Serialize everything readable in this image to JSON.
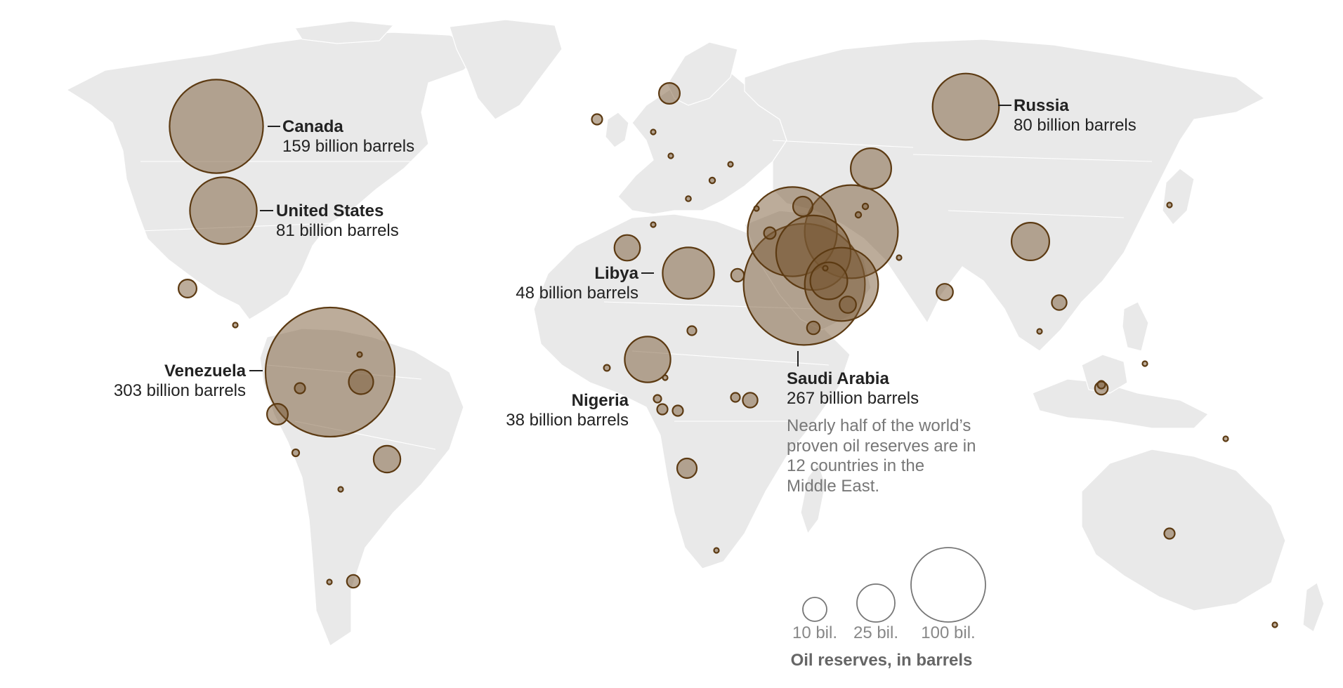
{
  "colors": {
    "land": "#e9e9e9",
    "bubble_fill": "#7a5a35",
    "bubble_stroke": "#5c3a12",
    "label_text": "#222222",
    "note_text": "#777777",
    "legend_stroke": "#777777"
  },
  "labels": {
    "canada": {
      "name": "Canada",
      "value": "159 billion barrels"
    },
    "united_states": {
      "name": "United States",
      "value": "81 billion barrels"
    },
    "venezuela": {
      "name": "Venezuela",
      "value": "303 billion barrels"
    },
    "libya": {
      "name": "Libya",
      "value": "48 billion barrels"
    },
    "nigeria": {
      "name": "Nigeria",
      "value": "38 billion barrels"
    },
    "russia": {
      "name": "Russia",
      "value": "80 billion barrels"
    },
    "saudi_arabia": {
      "name": "Saudi Arabia",
      "value": "267 billion barrels"
    }
  },
  "note": {
    "lines": [
      "Nearly half of the world’s",
      "proven oil reserves are in",
      "12 countries in the",
      "Middle East."
    ]
  },
  "legend": {
    "title": "Oil reserves, in barrels",
    "items": [
      {
        "label": "10 bil.",
        "reserves_billion": 10
      },
      {
        "label": "25 bil.",
        "reserves_billion": 25
      },
      {
        "label": "100 bil.",
        "reserves_billion": 100
      }
    ]
  },
  "reserves": [
    {
      "country": "Venezuela",
      "billion_barrels": 303
    },
    {
      "country": "Saudi Arabia",
      "billion_barrels": 267
    },
    {
      "country": "Canada",
      "billion_barrels": 159
    },
    {
      "country": "Iran",
      "billion_barrels": 158
    },
    {
      "country": "Iraq",
      "billion_barrels": 145
    },
    {
      "country": "Kuwait",
      "billion_barrels": 101
    },
    {
      "country": "United Arab Emirates",
      "billion_barrels": 98
    },
    {
      "country": "United States",
      "billion_barrels": 81
    },
    {
      "country": "Russia",
      "billion_barrels": 80
    },
    {
      "country": "Libya",
      "billion_barrels": 48
    },
    {
      "country": "Nigeria",
      "billion_barrels": 38
    },
    {
      "country": "Kazakhstan",
      "billion_barrels": 30
    },
    {
      "country": "China",
      "billion_barrels": 26
    },
    {
      "country": "Qatar",
      "billion_barrels": 25
    },
    {
      "country": "Brazil",
      "billion_barrels": 13
    },
    {
      "country": "Algeria",
      "billion_barrels": 12
    },
    {
      "country": "Guyana",
      "billion_barrels": 11
    },
    {
      "country": "Norway",
      "billion_barrels": 8
    },
    {
      "country": "Angola",
      "billion_barrels": 7
    },
    {
      "country": "Mexico",
      "billion_barrels": 6
    },
    {
      "country": "Ecuador",
      "billion_barrels": 8
    },
    {
      "country": "Azerbaijan",
      "billion_barrels": 7
    },
    {
      "country": "Oman",
      "billion_barrels": 5
    },
    {
      "country": "India",
      "billion_barrels": 5
    },
    {
      "country": "Vietnam",
      "billion_barrels": 4
    },
    {
      "country": "Egypt",
      "billion_barrels": 3
    },
    {
      "country": "South Sudan",
      "billion_barrels": 4
    },
    {
      "country": "Yemen",
      "billion_barrels": 3
    },
    {
      "country": "Malaysia",
      "billion_barrels": 3
    },
    {
      "country": "Indonesia",
      "billion_barrels": 2
    },
    {
      "country": "Argentina",
      "billion_barrels": 3
    },
    {
      "country": "Colombia",
      "billion_barrels": 2
    },
    {
      "country": "Australia",
      "billion_barrels": 2
    },
    {
      "country": "Gabon",
      "billion_barrels": 2
    },
    {
      "country": "Congo",
      "billion_barrels": 2
    },
    {
      "country": "Chad",
      "billion_barrels": 1.5
    },
    {
      "country": "Syria",
      "billion_barrels": 2.5
    },
    {
      "country": "Equatorial Guinea",
      "billion_barrels": 1.1
    },
    {
      "country": "Sudan",
      "billion_barrels": 1.5
    },
    {
      "country": "United Kingdom",
      "billion_barrels": 2
    },
    {
      "country": "Romania",
      "billion_barrels": 0.6
    },
    {
      "country": "Uzbekistan",
      "billion_barrels": 0.6
    },
    {
      "country": "Turkmenistan",
      "billion_barrels": 0.6
    },
    {
      "country": "Peru",
      "billion_barrels": 0.9
    },
    {
      "country": "Brunei",
      "billion_barrels": 1.1
    },
    {
      "country": "Tunisia",
      "billion_barrels": 0.4
    },
    {
      "country": "Bolivia",
      "billion_barrels": 0.2
    },
    {
      "country": "Cameroon",
      "billion_barrels": 0.2
    },
    {
      "country": "Trinidad and Tobago",
      "billion_barrels": 0.2
    },
    {
      "country": "Denmark",
      "billion_barrels": 0.4
    },
    {
      "country": "Italy",
      "billion_barrels": 0.5
    },
    {
      "country": "Ukraine",
      "billion_barrels": 0.4
    },
    {
      "country": "Bahrain",
      "billion_barrels": 0.2
    },
    {
      "country": "Cuba",
      "billion_barrels": 0.1
    },
    {
      "country": "Ghana",
      "billion_barrels": 0.7
    },
    {
      "country": "Thailand",
      "billion_barrels": 0.3
    },
    {
      "country": "Turkey",
      "billion_barrels": 0.4
    },
    {
      "country": "Germany",
      "billion_barrels": 0.2
    },
    {
      "country": "Chile",
      "billion_barrels": 0.2
    },
    {
      "country": "Pakistan",
      "billion_barrels": 0.4
    },
    {
      "country": "Papua New Guinea",
      "billion_barrels": 0.2
    },
    {
      "country": "Philippines",
      "billion_barrels": 0.1
    },
    {
      "country": "New Zealand",
      "billion_barrels": 0.1
    },
    {
      "country": "Japan",
      "billion_barrels": 0.04
    },
    {
      "country": "South Africa",
      "billion_barrels": 0.02
    }
  ]
}
